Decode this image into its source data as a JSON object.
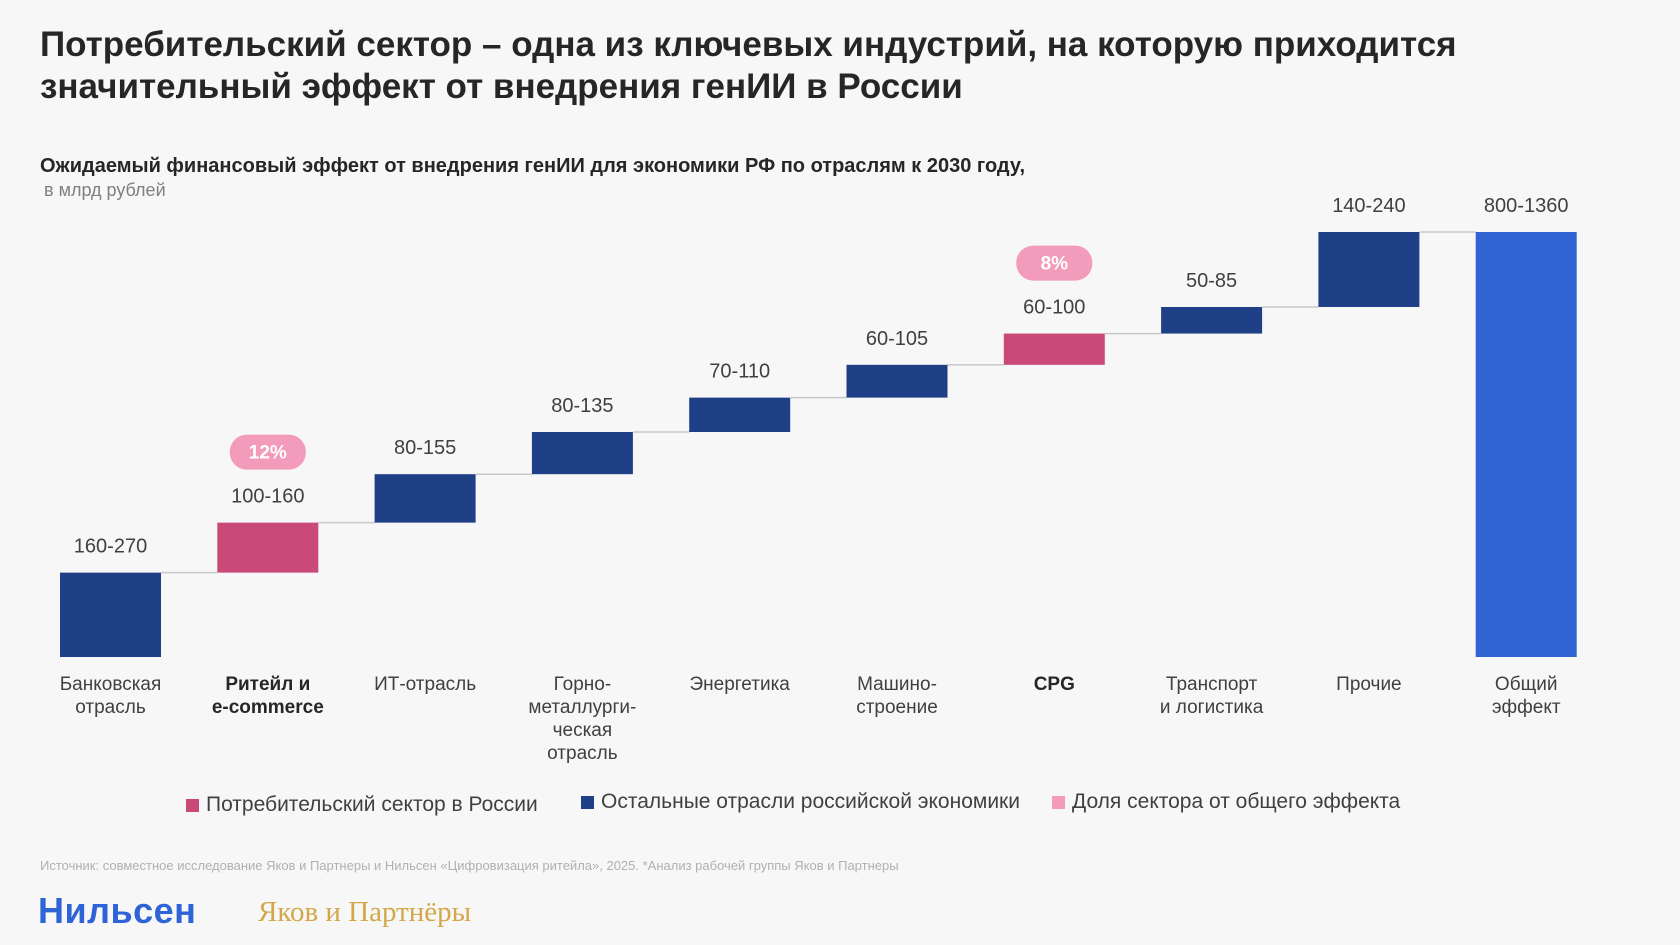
{
  "title": "Потребительский сектор – одна из ключевых индустрий, на которую приходится значительный эффект от внедрения генИИ в России",
  "title_line1": "Потребительский сектор – одна из ключевых индустрий, на которую приходится",
  "title_line2": "значительный эффект от внедрения генИИ в России",
  "subtitle": "Ожидаемый финансовый эффект от внедрения генИИ для экономики РФ по отраслям к 2030 году,",
  "units": "в млрд рублей",
  "colors": {
    "consumer": "#c94a79",
    "other": "#1f3f87",
    "total": "#3064d2",
    "share_pill": "#f39bbb",
    "connector": "#c8c8c8"
  },
  "chart_data": {
    "type": "waterfall",
    "title": "Ожидаемый финансовый эффект от внедрения генИИ для экономики РФ по отраслям к 2030 году",
    "ylabel": "в млрд рублей",
    "categories": [
      [
        "Банковская",
        "отрасль"
      ],
      [
        "Ритейл и",
        "e-commerce"
      ],
      [
        "ИТ-отрасль"
      ],
      [
        "Горно-",
        "металлурги-",
        "ческая",
        "отрасль"
      ],
      [
        "Энергетика"
      ],
      [
        "Машино-",
        "строение"
      ],
      [
        "CPG"
      ],
      [
        "Транспорт",
        "и логистика"
      ],
      [
        "Прочие"
      ],
      [
        "Общий",
        "эффект"
      ]
    ],
    "bold_categories": [
      1,
      6
    ],
    "ranges": [
      {
        "low": 160,
        "high": 270,
        "label": "160-270",
        "group": "other"
      },
      {
        "low": 100,
        "high": 160,
        "label": "100-160",
        "group": "consumer"
      },
      {
        "low": 80,
        "high": 155,
        "label": "80-155",
        "group": "other"
      },
      {
        "low": 80,
        "high": 135,
        "label": "80-135",
        "group": "other"
      },
      {
        "low": 70,
        "high": 110,
        "label": "70-110",
        "group": "other"
      },
      {
        "low": 60,
        "high": 105,
        "label": "60-105",
        "group": "other"
      },
      {
        "low": 60,
        "high": 100,
        "label": "60-100",
        "group": "consumer"
      },
      {
        "low": 50,
        "high": 85,
        "label": "50-85",
        "group": "other"
      },
      {
        "low": 140,
        "high": 240,
        "label": "140-240",
        "group": "other"
      },
      {
        "low": 800,
        "high": 1360,
        "label": "800-1360",
        "group": "total"
      }
    ],
    "shares": [
      {
        "index": 1,
        "label": "12%"
      },
      {
        "index": 6,
        "label": "8%"
      }
    ],
    "legend": [
      {
        "label": "Потребительский сектор в России",
        "group": "consumer"
      },
      {
        "label": "Остальные отрасли российской экономики",
        "group": "other"
      },
      {
        "label": "Доля сектора от общего эффекта",
        "group": "share_pill"
      }
    ],
    "legend_position": "bottom"
  },
  "source": "Источник: совместное исследование Яков и Партнеры и Нильсен «Цифровизация ритейла», 2025. *Анализ рабочей группы Яков и Партнеры",
  "logos": {
    "nielsen": "Нильсен",
    "yakov": "Яков и Партнёры"
  }
}
